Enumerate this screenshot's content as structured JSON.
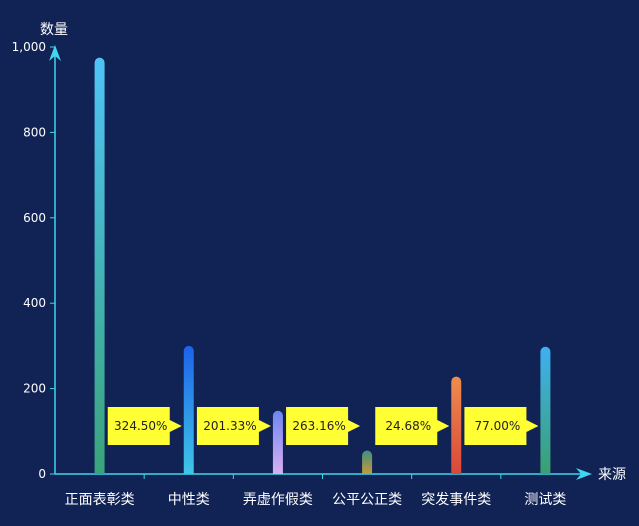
{
  "chart_data": {
    "type": "bar",
    "ylabel": "数量",
    "xlabel": "来源",
    "ylim": [
      0,
      1000
    ],
    "yticks": [
      0,
      200,
      400,
      600,
      800,
      1000
    ],
    "ytick_labels": [
      "0",
      "200",
      "400",
      "600",
      "800",
      "1,000"
    ],
    "categories": [
      "正面表彰类",
      "中性类",
      "弄虚作假类",
      "公平公正类",
      "突发事件类",
      "测试类"
    ],
    "values": [
      975,
      300,
      148,
      55,
      228,
      298
    ],
    "percent_labels": [
      "",
      "324.50%",
      "201.33%",
      "263.16%",
      "24.68%",
      "77.00%"
    ],
    "bar_gradients": [
      [
        "#4fc3f7",
        "#3aa37a"
      ],
      [
        "#1e62e8",
        "#3ec6e8"
      ],
      [
        "#6e86f0",
        "#d8b0f2"
      ],
      [
        "#3d9080",
        "#c99838"
      ],
      [
        "#f08d4e",
        "#d9473a"
      ],
      [
        "#3fb0f0",
        "#3aa070"
      ]
    ],
    "colors": {
      "background": "#112255",
      "axis": "#3fd6ee",
      "text": "#ffffff",
      "tag_fill": "#ffff33",
      "tag_text": "#222222"
    }
  }
}
